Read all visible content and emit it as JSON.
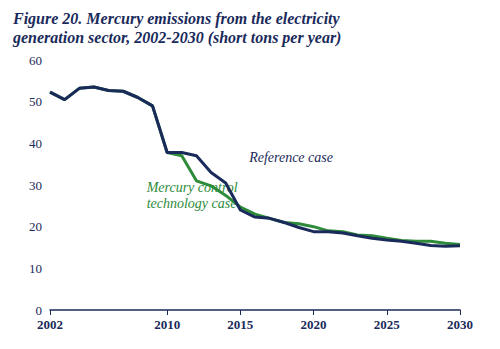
{
  "chart_data": {
    "type": "line",
    "title": "Figure 20. Mercury emissions from the electricity generation sector, 2002-2030 (short tons per year)",
    "x": [
      2002,
      2003,
      2004,
      2005,
      2006,
      2007,
      2008,
      2009,
      2010,
      2011,
      2012,
      2013,
      2014,
      2015,
      2016,
      2017,
      2018,
      2019,
      2020,
      2021,
      2022,
      2023,
      2024,
      2025,
      2026,
      2027,
      2028,
      2029,
      2030
    ],
    "series": [
      {
        "name": "Mercury control technology case",
        "color": "#2e8b3a",
        "values": [
          52.3,
          50.5,
          53.2,
          53.5,
          52.7,
          52.5,
          51.0,
          49.0,
          37.8,
          37.0,
          31.0,
          29.8,
          27.5,
          24.7,
          23.0,
          22.0,
          21.0,
          20.7,
          20.0,
          19.0,
          18.8,
          18.0,
          17.8,
          17.2,
          16.7,
          16.5,
          16.5,
          16.0,
          15.7
        ]
      },
      {
        "name": "Reference case",
        "color": "#1a2a5a",
        "values": [
          52.3,
          50.5,
          53.2,
          53.5,
          52.7,
          52.5,
          51.0,
          49.0,
          37.8,
          37.8,
          37.0,
          33.0,
          30.5,
          24.0,
          22.3,
          22.0,
          21.0,
          19.8,
          18.8,
          18.8,
          18.5,
          17.8,
          17.2,
          16.8,
          16.5,
          16.0,
          15.5,
          15.3,
          15.4
        ]
      }
    ],
    "xlim": [
      2002,
      2030
    ],
    "xticks": [
      2002,
      2010,
      2015,
      2020,
      2025,
      2030
    ],
    "ylim": [
      0,
      60
    ],
    "yticks": [
      0,
      10,
      20,
      30,
      40,
      50,
      60
    ],
    "grid": false
  }
}
